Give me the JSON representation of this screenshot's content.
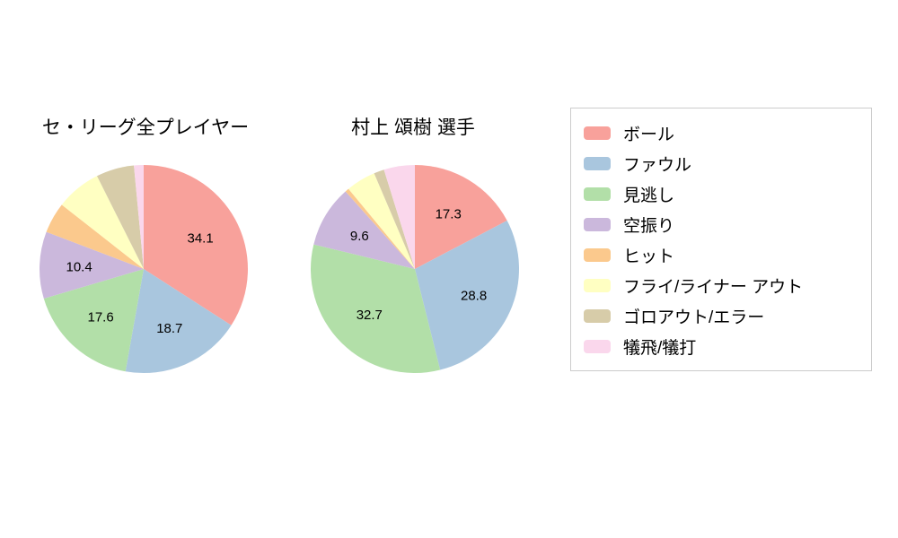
{
  "chart_data": [
    {
      "type": "pie",
      "title": "セ・リーグ全プレイヤー",
      "start_angle_deg": 90,
      "direction": "clockwise",
      "slices": [
        {
          "name": "ボール",
          "value": 34.1,
          "label": "34.1"
        },
        {
          "name": "ファウル",
          "value": 18.7,
          "label": "18.7"
        },
        {
          "name": "見逃し",
          "value": 17.6,
          "label": "17.6"
        },
        {
          "name": "空振り",
          "value": 10.4,
          "label": "10.4"
        },
        {
          "name": "ヒット",
          "value": 4.8,
          "label": ""
        },
        {
          "name": "フライ/ライナー アウト",
          "value": 7.0,
          "label": ""
        },
        {
          "name": "ゴロアウト/エラー",
          "value": 5.9,
          "label": ""
        },
        {
          "name": "犠飛/犠打",
          "value": 1.5,
          "label": ""
        }
      ]
    },
    {
      "type": "pie",
      "title": "村上 頌樹  選手",
      "start_angle_deg": 90,
      "direction": "clockwise",
      "slices": [
        {
          "name": "ボール",
          "value": 17.3,
          "label": "17.3"
        },
        {
          "name": "ファウル",
          "value": 28.8,
          "label": "28.8"
        },
        {
          "name": "見逃し",
          "value": 32.7,
          "label": "32.7"
        },
        {
          "name": "空振り",
          "value": 9.6,
          "label": "9.6"
        },
        {
          "name": "ヒット",
          "value": 0.6,
          "label": ""
        },
        {
          "name": "フライ/ライナー アウト",
          "value": 4.6,
          "label": ""
        },
        {
          "name": "ゴロアウト/エラー",
          "value": 1.6,
          "label": ""
        },
        {
          "name": "犠飛/犠打",
          "value": 4.8,
          "label": ""
        }
      ]
    }
  ],
  "legend": {
    "items": [
      {
        "label": "ボール",
        "color": "#F8A19B"
      },
      {
        "label": "ファウル",
        "color": "#A9C6DE"
      },
      {
        "label": "見逃し",
        "color": "#B2DFA8"
      },
      {
        "label": "空振り",
        "color": "#CBB8DC"
      },
      {
        "label": "ヒット",
        "color": "#FBC98D"
      },
      {
        "label": "フライ/ライナー アウト",
        "color": "#FFFFC2"
      },
      {
        "label": "ゴロアウト/エラー",
        "color": "#D7CCA9"
      },
      {
        "label": "犠飛/犠打",
        "color": "#FAD7EC"
      }
    ]
  }
}
